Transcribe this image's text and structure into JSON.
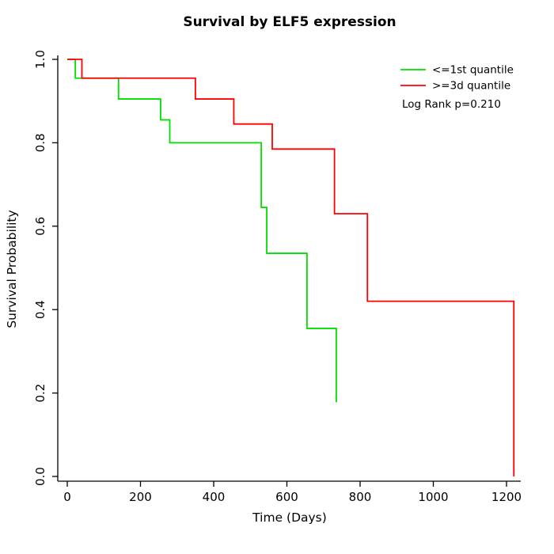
{
  "chart_data": {
    "type": "line",
    "chart_kind": "kaplan-meier-step-curve",
    "title": "Survival by ELF5 expression",
    "xlabel": "Time (Days)",
    "ylabel": "Survival Probability",
    "xlim": [
      0,
      1300
    ],
    "ylim": [
      0.0,
      1.0
    ],
    "xticks": [
      0,
      200,
      400,
      600,
      800,
      1000,
      1200
    ],
    "yticks": [
      0.0,
      0.2,
      0.4,
      0.6,
      0.8,
      1.0
    ],
    "grid": false,
    "legend_position": "top-right-inside",
    "legend": {
      "entries": [
        {
          "label": "<=1st quantile",
          "color": "#00E000"
        },
        {
          "label": ">=3d quantile",
          "color": "#FF0000"
        }
      ]
    },
    "annotation": "Log Rank p=0.210",
    "series": [
      {
        "name": "<=1st quantile",
        "color": "#00E000",
        "step": "post",
        "points": [
          [
            0,
            1.0
          ],
          [
            22,
            0.955
          ],
          [
            140,
            0.905
          ],
          [
            255,
            0.855
          ],
          [
            280,
            0.8
          ],
          [
            530,
            0.645
          ],
          [
            545,
            0.535
          ],
          [
            655,
            0.355
          ],
          [
            735,
            0.178
          ]
        ]
      },
      {
        "name": ">=3d quantile",
        "color": "#FF0000",
        "step": "post",
        "points": [
          [
            0,
            1.0
          ],
          [
            40,
            0.955
          ],
          [
            350,
            0.905
          ],
          [
            455,
            0.845
          ],
          [
            560,
            0.785
          ],
          [
            730,
            0.63
          ],
          [
            820,
            0.42
          ],
          [
            1220,
            0.0
          ]
        ]
      }
    ]
  }
}
